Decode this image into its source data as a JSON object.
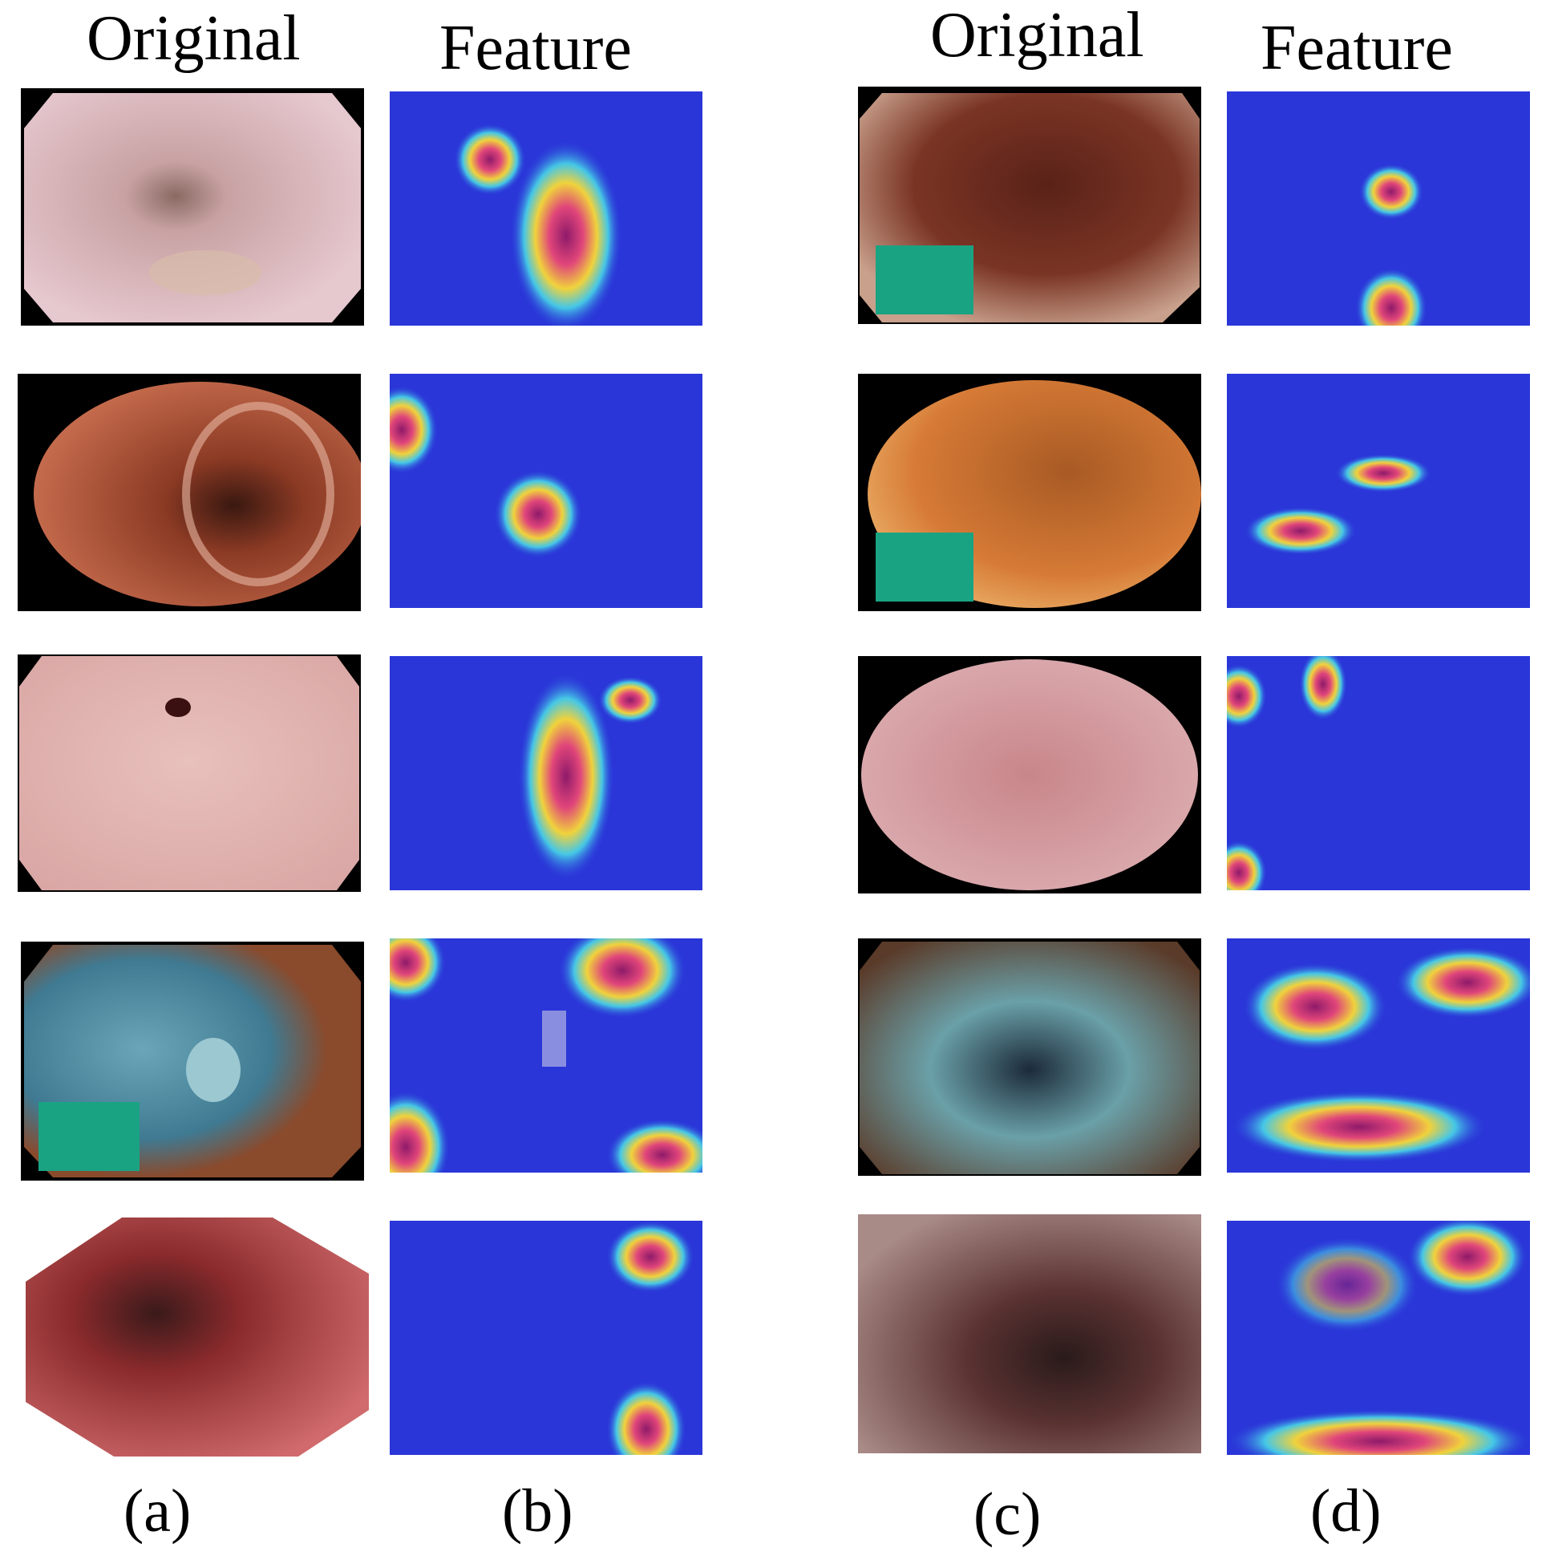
{
  "headers": {
    "left_original": "Original",
    "left_feature": "Feature",
    "right_original": "Original",
    "right_feature": "Feature"
  },
  "captions": {
    "a": "(a)",
    "b": "(b)",
    "c": "(c)",
    "d": "(d)"
  },
  "colors": {
    "heat_low": "#2a36d8",
    "heat_mid": "#45c7e6",
    "heat_high": "#f0d23c",
    "heat_peak": "#8e1a6a",
    "overlay_box": "#1aa383"
  }
}
